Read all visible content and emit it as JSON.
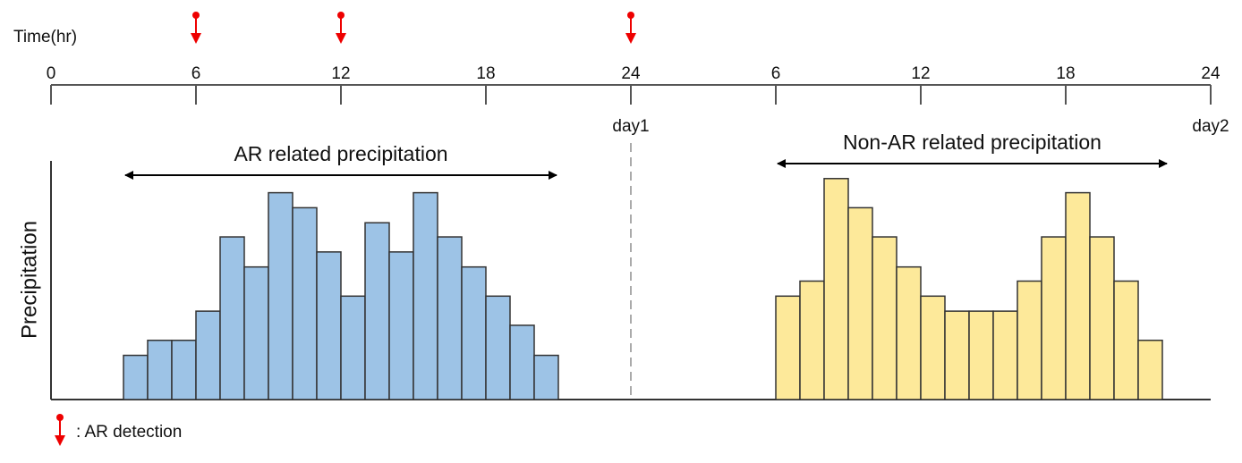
{
  "chart_data": {
    "type": "histogram",
    "x_label": "Time(hr)",
    "y_label": "Precipitation",
    "xlim": [
      0,
      48
    ],
    "xticks": [
      0,
      6,
      12,
      18,
      24,
      {
        "value": 30,
        "label": "6"
      },
      {
        "value": 36,
        "label": "12"
      },
      {
        "value": 42,
        "label": "18"
      },
      {
        "value": 48,
        "label": "24"
      }
    ],
    "day_labels": [
      {
        "value": 24,
        "label": "day1"
      },
      {
        "value": 48,
        "label": "day2"
      }
    ],
    "ylim": [
      0,
      27
    ],
    "series": [
      {
        "name": "AR related precipitation",
        "color": "#9dc3e6",
        "bins": [
          3,
          4,
          5,
          6,
          7,
          8,
          9,
          10,
          11,
          12,
          13,
          14,
          15,
          16,
          17,
          18,
          19,
          20,
          21
        ],
        "values": [
          5,
          6.7,
          6.7,
          10,
          18.4,
          15,
          23.4,
          21.7,
          16.7,
          11.7,
          20,
          16.7,
          23.4,
          18.4,
          15,
          11.7,
          8.4,
          5
        ]
      },
      {
        "name": "Non-AR related precipitation",
        "color": "#fde99a",
        "bins": [
          30,
          31,
          32,
          33,
          34,
          35,
          36,
          37,
          38,
          39,
          40,
          41,
          42,
          43,
          44,
          45,
          46
        ],
        "values": [
          11.7,
          13.4,
          25,
          21.7,
          18.4,
          15,
          11.7,
          10,
          10,
          10,
          13.4,
          18.4,
          23.4,
          18.4,
          13.4,
          6.7
        ]
      }
    ],
    "ar_detections": [
      6,
      12,
      24
    ],
    "legend": ": AR detection"
  }
}
